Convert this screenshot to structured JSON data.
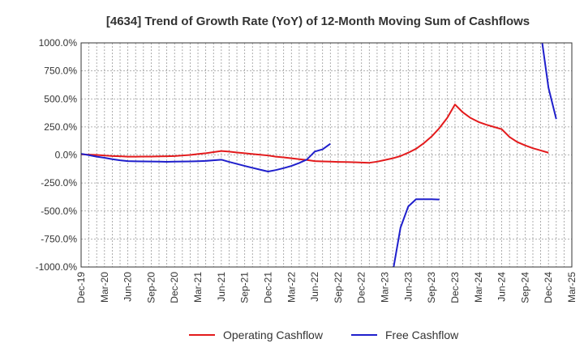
{
  "chart_data": {
    "type": "line",
    "title": "[4634]  Trend of Growth Rate (YoY) of 12-Month Moving Sum of Cashflows",
    "xlabel": "",
    "ylabel": "",
    "ylim": [
      -1000,
      1000
    ],
    "y_ticks": [
      "1000.0%",
      "750.0%",
      "500.0%",
      "250.0%",
      "0.0%",
      "-250.0%",
      "-500.0%",
      "-750.0%",
      "-1000.0%"
    ],
    "x_ticks": [
      "Dec-19",
      "Mar-20",
      "Jun-20",
      "Sep-20",
      "Dec-20",
      "Mar-21",
      "Jun-21",
      "Sep-21",
      "Dec-21",
      "Mar-22",
      "Jun-22",
      "Sep-22",
      "Dec-22",
      "Mar-23",
      "Jun-23",
      "Sep-23",
      "Dec-23",
      "Mar-24",
      "Jun-24",
      "Sep-24",
      "Dec-24",
      "Mar-25"
    ],
    "grid": true,
    "legend_position": "bottom",
    "series": [
      {
        "name": "Operating Cashflow",
        "color": "#e31a1c",
        "points": [
          [
            "Dec-19",
            5
          ],
          [
            "Jan-20",
            3
          ],
          [
            "Feb-20",
            0
          ],
          [
            "Mar-20",
            -5
          ],
          [
            "Apr-20",
            -10
          ],
          [
            "May-20",
            -12
          ],
          [
            "Jun-20",
            -15
          ],
          [
            "Jul-20",
            -15
          ],
          [
            "Aug-20",
            -14
          ],
          [
            "Sep-20",
            -14
          ],
          [
            "Oct-20",
            -13
          ],
          [
            "Nov-20",
            -12
          ],
          [
            "Dec-20",
            -10
          ],
          [
            "Jan-21",
            -5
          ],
          [
            "Feb-21",
            0
          ],
          [
            "Mar-21",
            8
          ],
          [
            "Apr-21",
            15
          ],
          [
            "May-21",
            25
          ],
          [
            "Jun-21",
            35
          ],
          [
            "Jul-21",
            30
          ],
          [
            "Aug-21",
            22
          ],
          [
            "Sep-21",
            15
          ],
          [
            "Oct-21",
            8
          ],
          [
            "Nov-21",
            2
          ],
          [
            "Dec-21",
            -5
          ],
          [
            "Jan-22",
            -15
          ],
          [
            "Feb-22",
            -22
          ],
          [
            "Mar-22",
            -30
          ],
          [
            "Apr-22",
            -38
          ],
          [
            "May-22",
            -45
          ],
          [
            "Jun-22",
            -55
          ],
          [
            "Jul-22",
            -58
          ],
          [
            "Aug-22",
            -60
          ],
          [
            "Sep-22",
            -62
          ],
          [
            "Oct-22",
            -63
          ],
          [
            "Nov-22",
            -65
          ],
          [
            "Dec-22",
            -68
          ],
          [
            "Jan-23",
            -70
          ],
          [
            "Feb-23",
            -60
          ],
          [
            "Mar-23",
            -45
          ],
          [
            "Apr-23",
            -30
          ],
          [
            "May-23",
            -10
          ],
          [
            "Jun-23",
            20
          ],
          [
            "Jul-23",
            55
          ],
          [
            "Aug-23",
            105
          ],
          [
            "Sep-23",
            165
          ],
          [
            "Oct-23",
            240
          ],
          [
            "Nov-23",
            330
          ],
          [
            "Dec-23",
            450
          ],
          [
            "Jan-24",
            380
          ],
          [
            "Feb-24",
            330
          ],
          [
            "Mar-24",
            295
          ],
          [
            "Apr-24",
            270
          ],
          [
            "May-24",
            250
          ],
          [
            "Jun-24",
            230
          ],
          [
            "Jul-24",
            160
          ],
          [
            "Aug-24",
            115
          ],
          [
            "Sep-24",
            85
          ],
          [
            "Oct-24",
            60
          ],
          [
            "Nov-24",
            40
          ],
          [
            "Dec-24",
            20
          ]
        ]
      },
      {
        "name": "Free Cashflow",
        "color": "#1f1fcc",
        "segments": [
          [
            [
              "Dec-19",
              10
            ],
            [
              "Jan-20",
              -2
            ],
            [
              "Feb-20",
              -15
            ],
            [
              "Mar-20",
              -25
            ],
            [
              "Apr-20",
              -38
            ],
            [
              "May-20",
              -48
            ],
            [
              "Jun-20",
              -55
            ],
            [
              "Jul-20",
              -57
            ],
            [
              "Aug-20",
              -58
            ],
            [
              "Sep-20",
              -59
            ],
            [
              "Oct-20",
              -60
            ],
            [
              "Nov-20",
              -61
            ],
            [
              "Dec-20",
              -60
            ],
            [
              "Jan-21",
              -59
            ],
            [
              "Feb-21",
              -58
            ],
            [
              "Mar-21",
              -56
            ],
            [
              "Apr-21",
              -53
            ],
            [
              "May-21",
              -48
            ],
            [
              "Jun-21",
              -42
            ],
            [
              "Jul-21",
              -62
            ],
            [
              "Aug-21",
              -80
            ],
            [
              "Sep-21",
              -98
            ],
            [
              "Oct-21",
              -115
            ],
            [
              "Nov-21",
              -132
            ],
            [
              "Dec-21",
              -148
            ],
            [
              "Jan-22",
              -135
            ],
            [
              "Feb-22",
              -118
            ],
            [
              "Mar-22",
              -98
            ],
            [
              "Apr-22",
              -72
            ],
            [
              "May-22",
              -40
            ],
            [
              "Jun-22",
              30
            ],
            [
              "Jul-22",
              50
            ],
            [
              "Aug-22",
              100
            ]
          ],
          [
            [
              "Apr-23",
              -1050
            ],
            [
              "May-23",
              -650
            ],
            [
              "Jun-23",
              -460
            ],
            [
              "Jul-23",
              -395
            ],
            [
              "Aug-23",
              -395
            ],
            [
              "Sep-23",
              -395
            ],
            [
              "Oct-23",
              -398
            ]
          ],
          [
            [
              "Nov-24",
              1100
            ],
            [
              "Dec-24",
              600
            ],
            [
              "Jan-25",
              320
            ]
          ]
        ]
      }
    ]
  }
}
